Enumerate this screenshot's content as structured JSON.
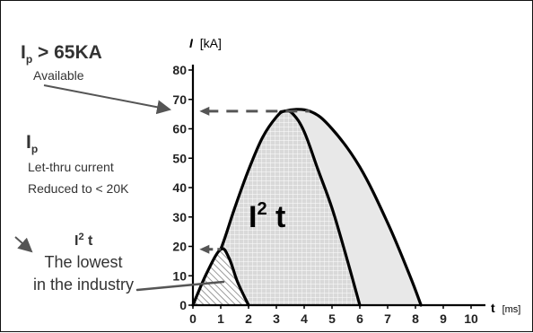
{
  "annotations": {
    "ip_available": {
      "symbol_main": "I",
      "symbol_sub": "p",
      "relation": " > 65KA",
      "label": "Available"
    },
    "ip_letthru": {
      "symbol_main": "I",
      "symbol_sub": "p",
      "line1": "Let-thru current",
      "line2": "Reduced to < 20K"
    },
    "i2t_lowest": {
      "symbol_main": "I",
      "symbol_sup": "2",
      "symbol_tail": " t",
      "line1": "The lowest",
      "line2": "in the industry"
    },
    "i2t_big": {
      "symbol_main": "I",
      "symbol_sup": "2",
      "symbol_tail": " t"
    }
  },
  "chart_data": {
    "type": "area",
    "title": "",
    "ylabel": {
      "symbol": "I",
      "unit": "[kA]"
    },
    "xlabel": {
      "symbol": "t",
      "unit": "[ms]"
    },
    "xlim": [
      0,
      10
    ],
    "ylim": [
      0,
      80
    ],
    "x_ticks": [
      0,
      1,
      2,
      3,
      4,
      5,
      6,
      7,
      8,
      9,
      10
    ],
    "y_ticks": [
      0,
      10,
      20,
      30,
      40,
      50,
      60,
      70,
      80
    ],
    "colors": {
      "outline": "#000000",
      "unlimited_fill": "#e8e8e8",
      "grid_fill": "#d9d9d9",
      "grid_line": "#ffffff",
      "hatch_fill": "#d0d0d0",
      "arrow": "#555555",
      "dashed": "#555555"
    },
    "series": [
      {
        "name": "",
        "style": "light-fill",
        "x": [
          0,
          1,
          2,
          3,
          3.3,
          4.2,
          5,
          6,
          7,
          7.8,
          8.2
        ],
        "y": [
          0,
          19,
          44,
          63,
          66,
          66,
          60,
          47,
          28,
          10,
          0
        ]
      },
      {
        "name": "",
        "style": "grid-fill",
        "x": [
          0,
          0.5,
          1,
          1.5,
          2,
          2.5,
          3,
          3.3,
          3.6,
          4,
          4.5,
          5,
          5.5,
          6
        ],
        "y": [
          0,
          9,
          19,
          33,
          46,
          57,
          64,
          66,
          65,
          59,
          46,
          33,
          17,
          0
        ]
      },
      {
        "name": "",
        "style": "hatch-fill",
        "x": [
          0,
          0.5,
          1,
          1.3,
          1.6,
          2
        ],
        "y": [
          0,
          11,
          19,
          16,
          8,
          0
        ]
      }
    ],
    "reference_lines": [
      {
        "value": 66,
        "x_from": 0.3,
        "x_to": 4.2
      },
      {
        "value": 19,
        "x_from": 0.3,
        "x_to": 1.0
      }
    ]
  }
}
